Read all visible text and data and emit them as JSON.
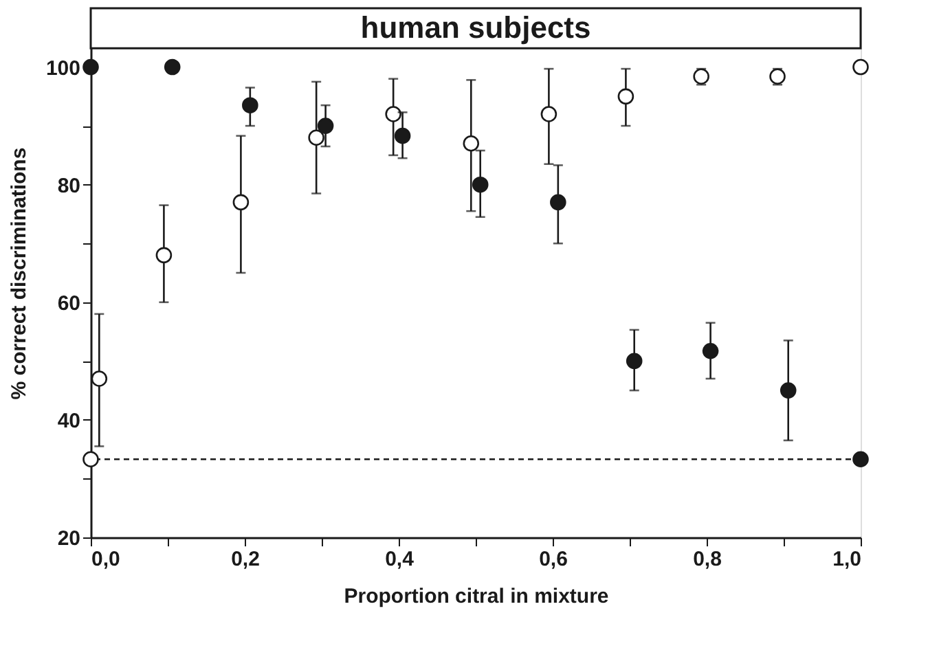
{
  "chart_data": {
    "type": "scatter",
    "xlabel": "Proportion citral in mixture",
    "ylabel": "% correct discriminations",
    "xlim": [
      0,
      1
    ],
    "ylim": [
      20,
      110
    ],
    "xticks": [
      {
        "value": 0,
        "label": "0,0"
      },
      {
        "value": 0.1,
        "label": null
      },
      {
        "value": 0.2,
        "label": "0,2"
      },
      {
        "value": 0.3,
        "label": null
      },
      {
        "value": 0.4,
        "label": "0,4"
      },
      {
        "value": 0.5,
        "label": null
      },
      {
        "value": 0.6,
        "label": "0,6"
      },
      {
        "value": 0.7,
        "label": null
      },
      {
        "value": 0.8,
        "label": "0,8"
      },
      {
        "value": 0.9,
        "label": null
      },
      {
        "value": 1,
        "label": "1,0"
      }
    ],
    "yticks": [
      20,
      {
        "value": 30,
        "label": null
      },
      40,
      {
        "value": 50,
        "label": null
      },
      60,
      {
        "value": 70,
        "label": null
      },
      80,
      {
        "value": 90,
        "label": null
      },
      100
    ],
    "marker": "circle",
    "grid": false,
    "series": [
      {
        "color": "#ffffff",
        "x": [
          0,
          0.011,
          0.095,
          0.195,
          0.293,
          0.393,
          0.494,
          0.595,
          0.695,
          0.793,
          0.892,
          1.0
        ],
        "values": [
          33.3,
          47,
          68,
          77,
          88,
          92,
          87,
          92,
          95,
          98.4,
          98.4,
          100
        ],
        "errors": [
          null,
          [
            35.5,
            58
          ],
          [
            60,
            76.5
          ],
          [
            65,
            88.3
          ],
          [
            78.5,
            97.5
          ],
          [
            85,
            98
          ],
          [
            75.5,
            97.8
          ],
          [
            83.5,
            99.7
          ],
          [
            90,
            99.7
          ],
          [
            97,
            99.7
          ],
          [
            97,
            99.7
          ],
          null
        ]
      },
      {
        "color": "#1a1a1a",
        "x": [
          0,
          0.106,
          0.207,
          0.305,
          0.405,
          0.506,
          0.607,
          0.706,
          0.805,
          0.906,
          1.0
        ],
        "values": [
          100,
          100,
          93.5,
          90,
          88.3,
          80,
          77,
          50,
          51.7,
          45,
          33.3
        ],
        "errors": [
          null,
          null,
          [
            90,
            96.5
          ],
          [
            86.5,
            93.5
          ],
          [
            84.5,
            92.3
          ],
          [
            74.5,
            85.8
          ],
          [
            70,
            83.3
          ],
          [
            45,
            55.3
          ],
          [
            47,
            56.5
          ],
          [
            36.5,
            53.5
          ],
          null
        ]
      }
    ],
    "ref_lines": [
      {
        "axis": "y",
        "value": 33.3,
        "line_style": "dashed",
        "color": "#1a1a1a"
      }
    ],
    "bands": [
      {
        "axis": "y",
        "from": 103.2,
        "to": 110,
        "label": "human subjects",
        "color": "#ffffff"
      }
    ]
  }
}
